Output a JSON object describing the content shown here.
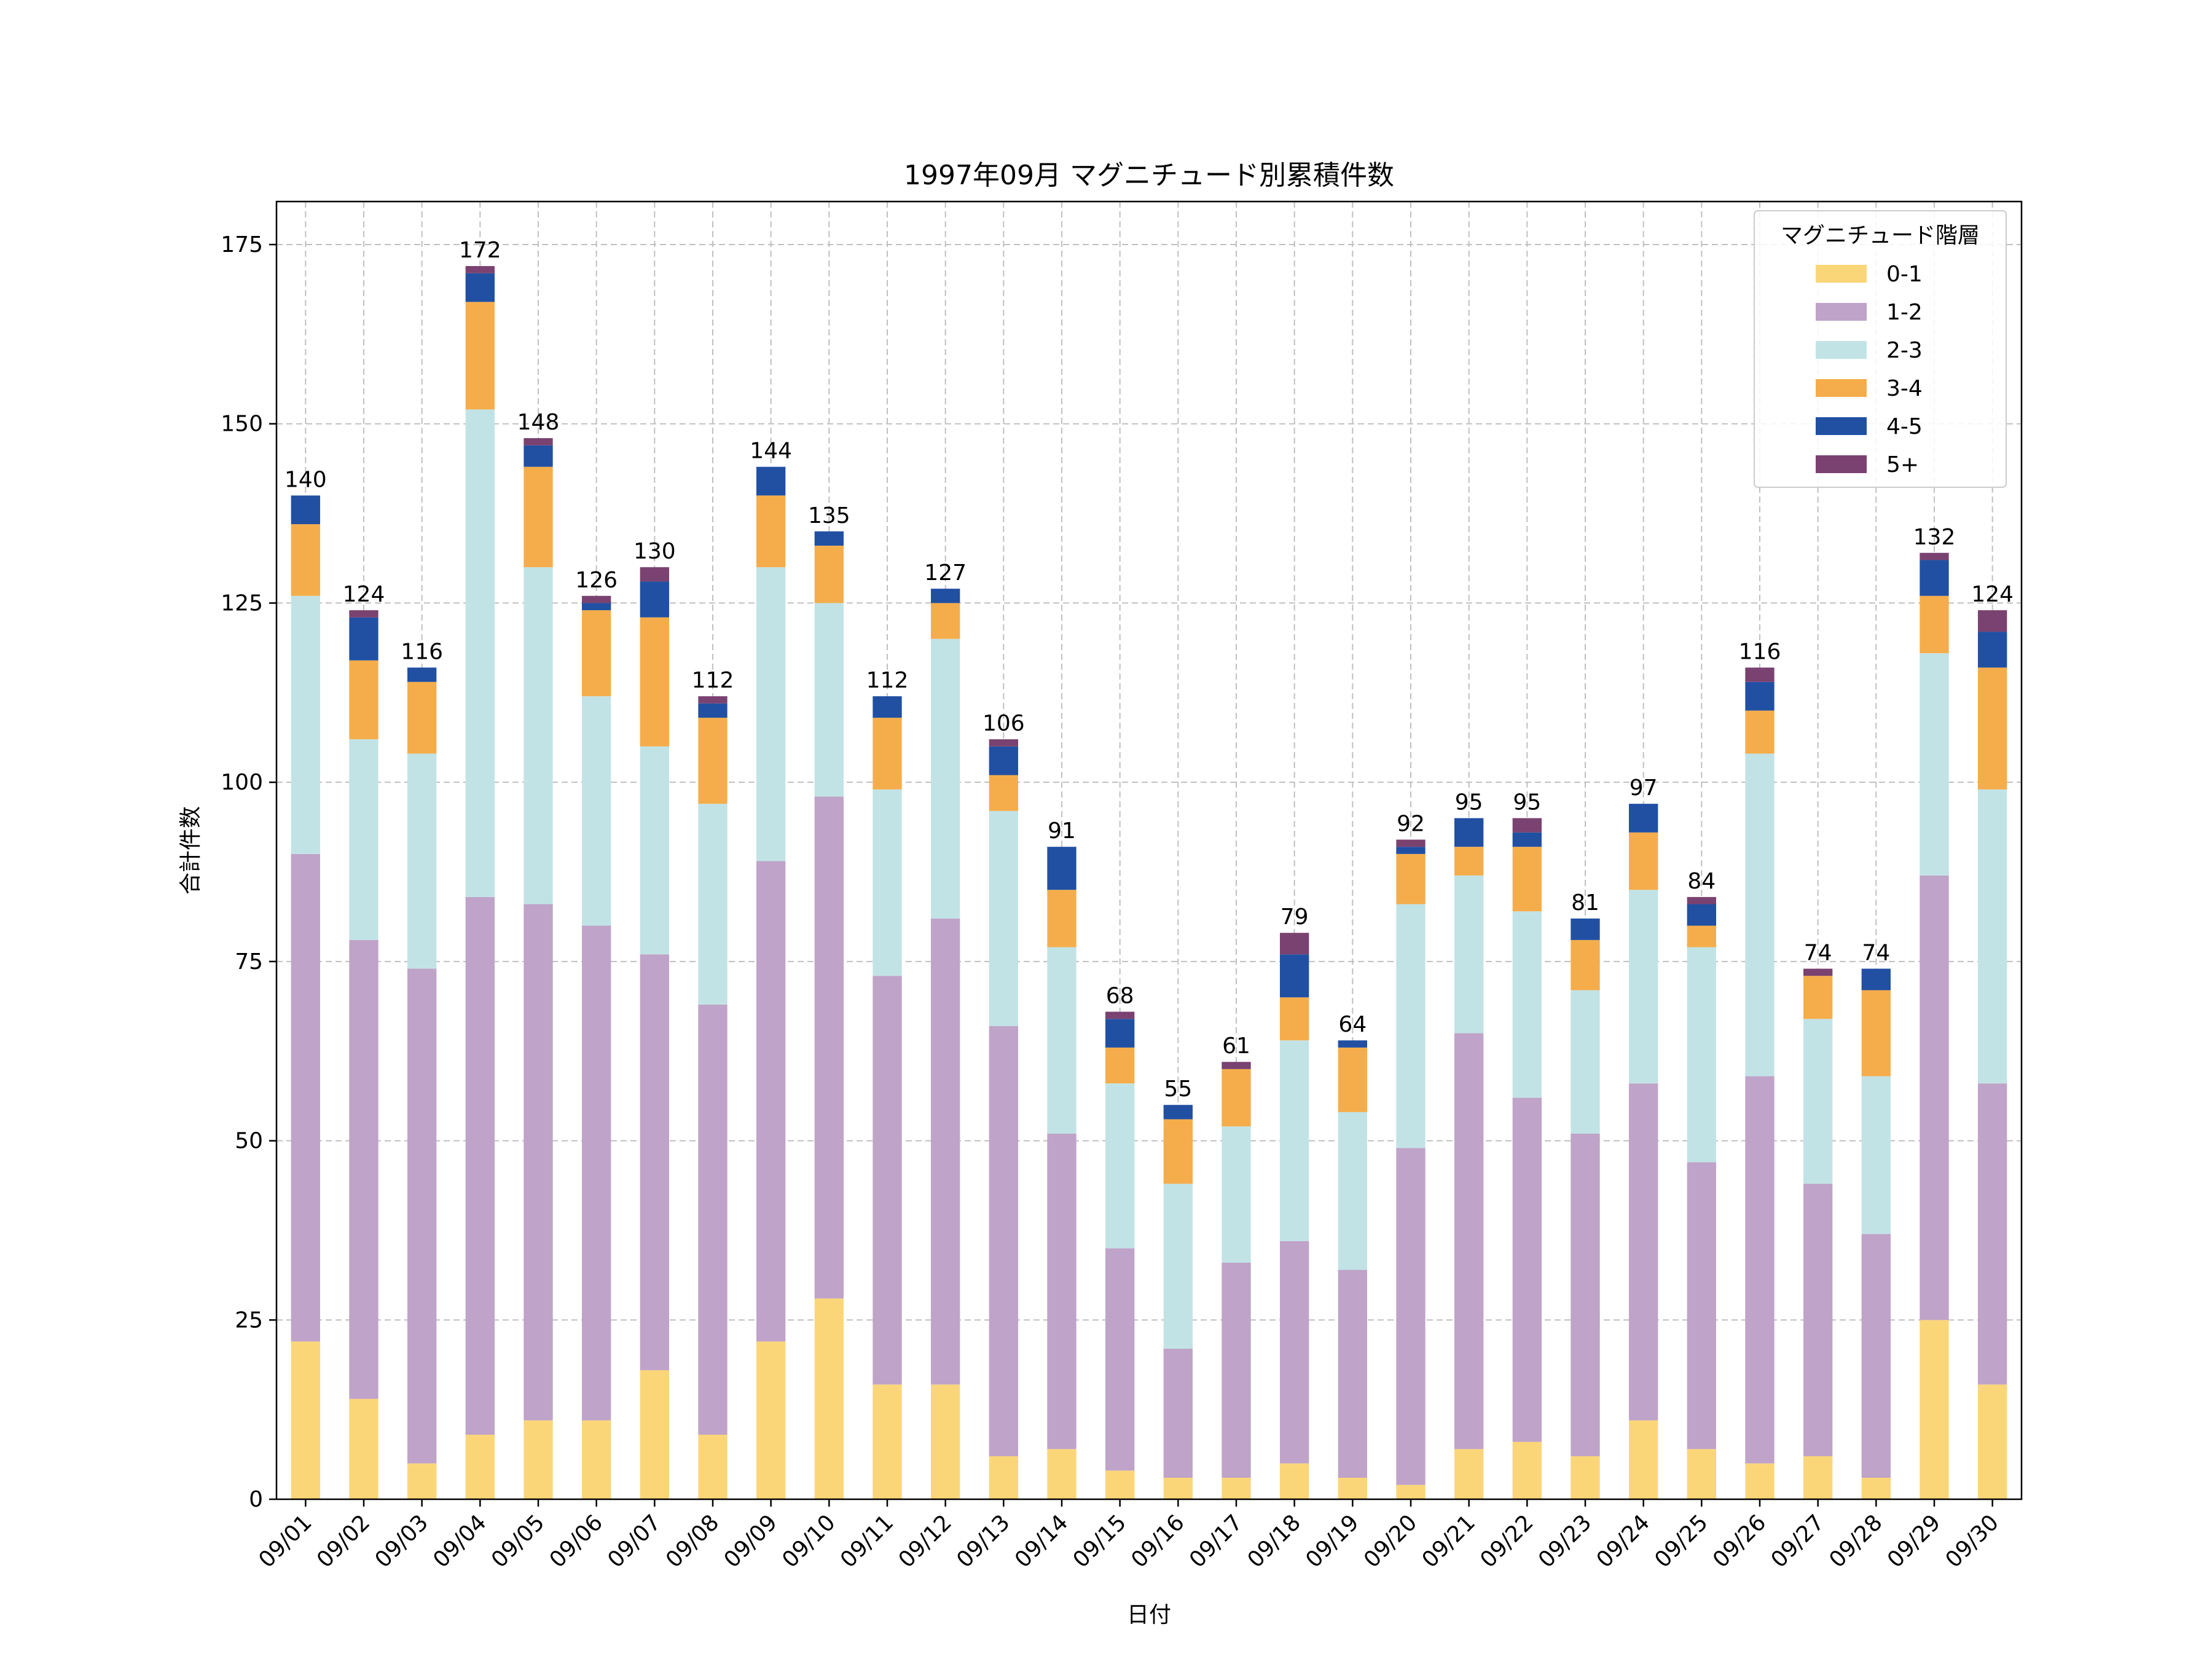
{
  "chart_data": {
    "type": "bar",
    "stacked": true,
    "title": "1997年09月 マグニチュード別累積件数",
    "xlabel": "日付",
    "ylabel": "合計件数",
    "ylim": [
      0,
      181
    ],
    "yticks": [
      0,
      25,
      50,
      75,
      100,
      125,
      150,
      175
    ],
    "grid": true,
    "legend": {
      "title": "マグニチュード階層",
      "placement": "top-right"
    },
    "categories": [
      "09/01",
      "09/02",
      "09/03",
      "09/04",
      "09/05",
      "09/06",
      "09/07",
      "09/08",
      "09/09",
      "09/10",
      "09/11",
      "09/12",
      "09/13",
      "09/14",
      "09/15",
      "09/16",
      "09/17",
      "09/18",
      "09/19",
      "09/20",
      "09/21",
      "09/22",
      "09/23",
      "09/24",
      "09/25",
      "09/26",
      "09/27",
      "09/28",
      "09/29",
      "09/30"
    ],
    "series": [
      {
        "name": "0-1",
        "color": "#fbd679",
        "values": [
          22,
          14,
          5,
          9,
          11,
          11,
          18,
          9,
          22,
          28,
          16,
          16,
          6,
          7,
          4,
          3,
          3,
          5,
          3,
          2,
          7,
          8,
          6,
          11,
          7,
          5,
          6,
          3,
          25,
          16
        ]
      },
      {
        "name": "1-2",
        "color": "#bfa3c8",
        "values": [
          68,
          64,
          69,
          75,
          72,
          69,
          58,
          60,
          67,
          70,
          57,
          65,
          60,
          44,
          31,
          18,
          30,
          31,
          29,
          47,
          58,
          48,
          45,
          47,
          40,
          54,
          38,
          34,
          62,
          42
        ]
      },
      {
        "name": "2-3",
        "color": "#c2e3e6",
        "values": [
          36,
          28,
          30,
          68,
          47,
          32,
          29,
          28,
          41,
          27,
          26,
          39,
          30,
          26,
          23,
          23,
          19,
          28,
          22,
          34,
          22,
          26,
          20,
          27,
          30,
          45,
          23,
          22,
          31,
          41
        ]
      },
      {
        "name": "3-4",
        "color": "#f5ad4b",
        "values": [
          10,
          11,
          10,
          15,
          14,
          12,
          18,
          12,
          10,
          8,
          10,
          5,
          5,
          8,
          5,
          9,
          8,
          6,
          9,
          7,
          4,
          9,
          7,
          8,
          3,
          6,
          6,
          12,
          8,
          17
        ]
      },
      {
        "name": "4-5",
        "color": "#2150a3",
        "values": [
          4,
          6,
          2,
          4,
          3,
          1,
          5,
          2,
          4,
          2,
          3,
          2,
          4,
          6,
          4,
          2,
          0,
          6,
          1,
          1,
          4,
          2,
          3,
          4,
          3,
          4,
          0,
          3,
          5,
          5
        ]
      },
      {
        "name": "5+",
        "color": "#7a4270",
        "values": [
          0,
          1,
          0,
          1,
          1,
          1,
          2,
          1,
          0,
          0,
          0,
          0,
          1,
          0,
          1,
          0,
          1,
          3,
          0,
          1,
          0,
          2,
          0,
          0,
          1,
          2,
          1,
          0,
          1,
          3
        ]
      }
    ],
    "totals": [
      140,
      124,
      116,
      172,
      148,
      126,
      130,
      112,
      144,
      135,
      112,
      127,
      106,
      91,
      68,
      55,
      61,
      79,
      64,
      92,
      95,
      95,
      81,
      97,
      84,
      116,
      74,
      74,
      132,
      124
    ]
  }
}
